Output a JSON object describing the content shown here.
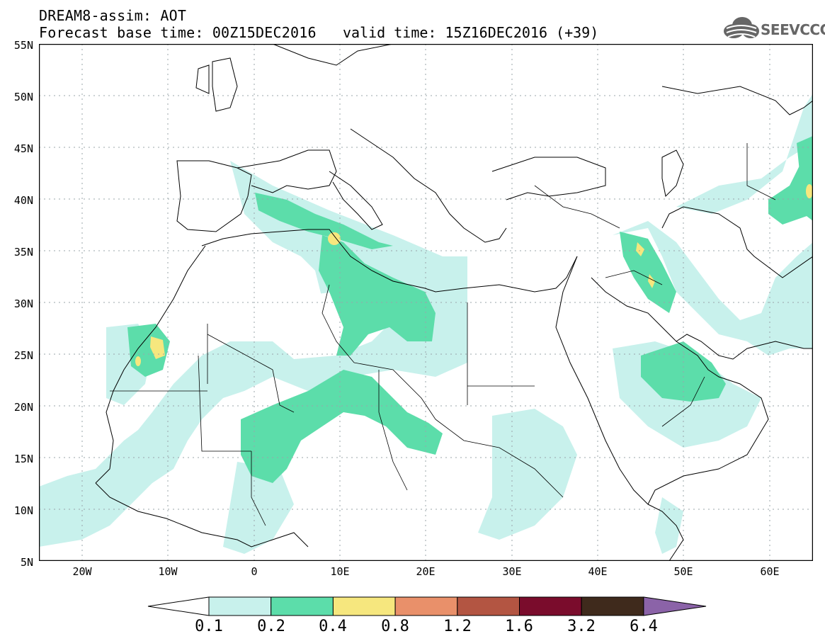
{
  "header": {
    "title_line1": "DREAM8-assim: AOT",
    "title_line2": "Forecast base time: 00Z15DEC2016",
    "valid_time": "valid time: 15Z16DEC2016 (+39)",
    "logo_text": "SEEVCCC"
  },
  "map": {
    "lon_range": [
      -25,
      65
    ],
    "lat_range": [
      5,
      55
    ],
    "lat_labels": [
      "55N",
      "50N",
      "45N",
      "40N",
      "35N",
      "30N",
      "25N",
      "20N",
      "15N",
      "10N",
      "5N"
    ],
    "lon_labels": [
      "20W",
      "10W",
      "0",
      "10E",
      "20E",
      "30E",
      "40E",
      "50E",
      "60E"
    ],
    "gridlines": "dotted",
    "gridline_color": "#9aa4aa",
    "coastline_color": "#000000"
  },
  "colorbar": {
    "labels": [
      "0.1",
      "0.2",
      "0.4",
      "0.8",
      "1.2",
      "1.6",
      "3.2",
      "6.4"
    ],
    "colors": [
      "#ffffff",
      "#c8f1ec",
      "#5cddaa",
      "#f6e77e",
      "#e9906a",
      "#b35542",
      "#7a0c2c",
      "#3f2a1c",
      "#8b63a8"
    ]
  }
}
